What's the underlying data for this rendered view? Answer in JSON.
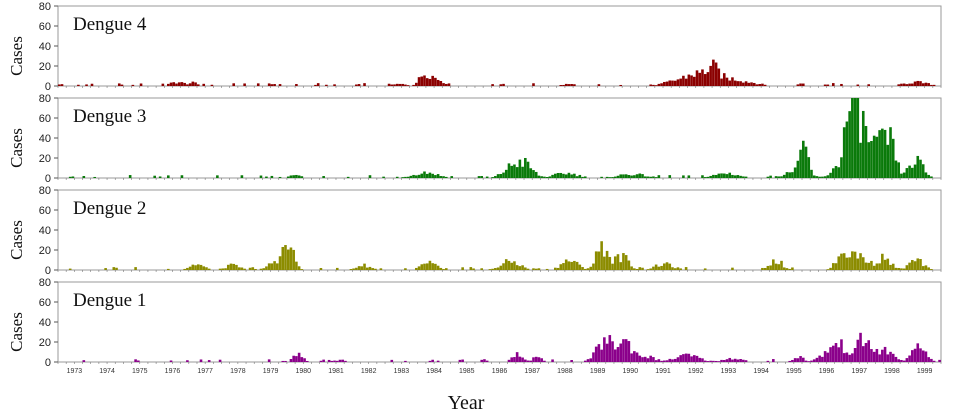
{
  "chart_data": {
    "type": "bar",
    "xlabel": "Year",
    "years": [
      "1973",
      "1974",
      "1975",
      "1976",
      "1977",
      "1978",
      "1979",
      "1980",
      "1981",
      "1982",
      "1983",
      "1984",
      "1985",
      "1986",
      "1987",
      "1988",
      "1989",
      "1990",
      "1991",
      "1992",
      "1993",
      "1994",
      "1995",
      "1996",
      "1997",
      "1998",
      "1999"
    ],
    "panels": [
      {
        "name": "Dengue 4",
        "color": "#8b0000",
        "ylabel": "Cases",
        "ylim": [
          0,
          80
        ],
        "yticks": [
          0,
          20,
          40,
          60,
          80
        ],
        "peaks": [
          {
            "t": 3.6,
            "v": 4,
            "w": 0.3
          },
          {
            "t": 4.1,
            "v": 3,
            "w": 0.2
          },
          {
            "t": 11.2,
            "v": 13,
            "w": 0.25
          },
          {
            "t": 11.6,
            "v": 6,
            "w": 0.3
          },
          {
            "t": 10.4,
            "v": 2,
            "w": 0.3
          },
          {
            "t": 15.6,
            "v": 2,
            "w": 0.3
          },
          {
            "t": 19.0,
            "v": 6,
            "w": 0.6
          },
          {
            "t": 19.5,
            "v": 9,
            "w": 0.4
          },
          {
            "t": 20.0,
            "v": 17,
            "w": 0.3
          },
          {
            "t": 20.6,
            "v": 7,
            "w": 0.4
          },
          {
            "t": 21.2,
            "v": 3,
            "w": 0.4
          },
          {
            "t": 26.2,
            "v": 4,
            "w": 0.5
          }
        ]
      },
      {
        "name": "Dengue 3",
        "color": "#0a7a0a",
        "ylabel": "Cases",
        "ylim": [
          0,
          80
        ],
        "yticks": [
          0,
          20,
          40,
          60,
          80
        ],
        "peaks": [
          {
            "t": 7.2,
            "v": 3,
            "w": 0.2
          },
          {
            "t": 11.2,
            "v": 6,
            "w": 0.5
          },
          {
            "t": 13.9,
            "v": 13,
            "w": 0.4
          },
          {
            "t": 14.3,
            "v": 10,
            "w": 0.3
          },
          {
            "t": 15.5,
            "v": 5,
            "w": 0.5
          },
          {
            "t": 17.5,
            "v": 4,
            "w": 0.6
          },
          {
            "t": 20.4,
            "v": 5,
            "w": 0.5
          },
          {
            "t": 22.6,
            "v": 10,
            "w": 0.4
          },
          {
            "t": 22.8,
            "v": 25,
            "w": 0.15
          },
          {
            "t": 23.8,
            "v": 10,
            "w": 0.3
          },
          {
            "t": 24.2,
            "v": 62,
            "w": 0.25
          },
          {
            "t": 24.5,
            "v": 45,
            "w": 0.3
          },
          {
            "t": 25.0,
            "v": 30,
            "w": 0.35
          },
          {
            "t": 25.4,
            "v": 32,
            "w": 0.25
          },
          {
            "t": 26.2,
            "v": 18,
            "w": 0.3
          }
        ]
      },
      {
        "name": "Dengue 2",
        "color": "#8c8c00",
        "ylabel": "Cases",
        "ylim": [
          0,
          80
        ],
        "yticks": [
          0,
          20,
          40,
          60,
          80
        ],
        "peaks": [
          {
            "t": 4.2,
            "v": 6,
            "w": 0.3
          },
          {
            "t": 5.3,
            "v": 5,
            "w": 0.3
          },
          {
            "t": 6.6,
            "v": 8,
            "w": 0.3
          },
          {
            "t": 7.0,
            "v": 24,
            "w": 0.25
          },
          {
            "t": 9.3,
            "v": 5,
            "w": 0.3
          },
          {
            "t": 11.3,
            "v": 8,
            "w": 0.3
          },
          {
            "t": 13.8,
            "v": 9,
            "w": 0.4
          },
          {
            "t": 15.6,
            "v": 10,
            "w": 0.35
          },
          {
            "t": 16.6,
            "v": 25,
            "w": 0.25
          },
          {
            "t": 17.2,
            "v": 14,
            "w": 0.3
          },
          {
            "t": 18.5,
            "v": 6,
            "w": 0.4
          },
          {
            "t": 21.9,
            "v": 10,
            "w": 0.3
          },
          {
            "t": 24.0,
            "v": 18,
            "w": 0.3
          },
          {
            "t": 24.5,
            "v": 14,
            "w": 0.3
          },
          {
            "t": 25.2,
            "v": 13,
            "w": 0.3
          },
          {
            "t": 26.2,
            "v": 10,
            "w": 0.3
          }
        ]
      },
      {
        "name": "Dengue 1",
        "color": "#8b008b",
        "ylabel": "Cases",
        "ylim": [
          0,
          80
        ],
        "yticks": [
          0,
          20,
          40,
          60,
          80
        ],
        "peaks": [
          {
            "t": 7.3,
            "v": 8,
            "w": 0.2
          },
          {
            "t": 8.6,
            "v": 2,
            "w": 0.3
          },
          {
            "t": 14.0,
            "v": 8,
            "w": 0.2
          },
          {
            "t": 14.6,
            "v": 5,
            "w": 0.2
          },
          {
            "t": 16.7,
            "v": 22,
            "w": 0.35
          },
          {
            "t": 17.3,
            "v": 20,
            "w": 0.3
          },
          {
            "t": 17.9,
            "v": 6,
            "w": 0.4
          },
          {
            "t": 19.2,
            "v": 7,
            "w": 0.5
          },
          {
            "t": 20.6,
            "v": 4,
            "w": 0.4
          },
          {
            "t": 22.6,
            "v": 6,
            "w": 0.2
          },
          {
            "t": 23.8,
            "v": 18,
            "w": 0.5
          },
          {
            "t": 24.6,
            "v": 22,
            "w": 0.25
          },
          {
            "t": 25.2,
            "v": 12,
            "w": 0.4
          },
          {
            "t": 26.3,
            "v": 15,
            "w": 0.3
          }
        ]
      }
    ]
  }
}
